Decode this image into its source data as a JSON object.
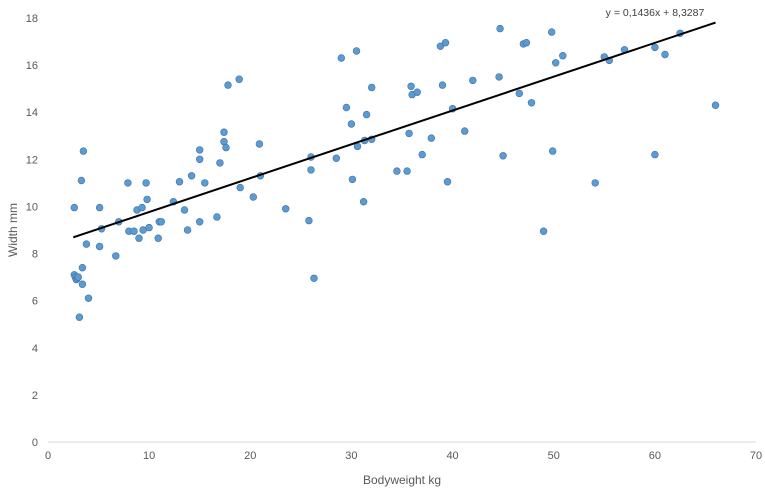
{
  "chart_data": {
    "type": "scatter",
    "title": "",
    "xlabel": "Bodyweight kg",
    "ylabel": "Width mm",
    "xlim": [
      0,
      70
    ],
    "ylim": [
      0,
      18
    ],
    "xticks": [
      0,
      10,
      20,
      30,
      40,
      50,
      60,
      70
    ],
    "yticks": [
      0,
      2,
      4,
      6,
      8,
      10,
      12,
      14,
      16,
      18
    ],
    "grid": false,
    "legend": "none",
    "marker_color": "#5B9BD5",
    "marker_edge_color": "#41719C",
    "trendline": {
      "type": "linear",
      "slope": 0.1436,
      "intercept": 8.3287,
      "x_range": [
        2.5,
        66
      ],
      "color": "#000000",
      "equation_label": "y = 0,1436x + 8,3287"
    },
    "points": [
      [
        2.6,
        9.95
      ],
      [
        2.6,
        7.1
      ],
      [
        2.7,
        7.0
      ],
      [
        2.8,
        6.9
      ],
      [
        2.9,
        6.95
      ],
      [
        3.0,
        7.0
      ],
      [
        3.1,
        5.3
      ],
      [
        3.3,
        11.1
      ],
      [
        3.4,
        7.4
      ],
      [
        3.4,
        6.7
      ],
      [
        3.5,
        12.35
      ],
      [
        3.8,
        8.4
      ],
      [
        4.0,
        6.1
      ],
      [
        5.1,
        8.3
      ],
      [
        5.1,
        9.95
      ],
      [
        5.3,
        9.05
      ],
      [
        6.7,
        7.9
      ],
      [
        7.0,
        9.35
      ],
      [
        7.9,
        11.0
      ],
      [
        8.0,
        8.95
      ],
      [
        8.5,
        8.95
      ],
      [
        8.8,
        9.85
      ],
      [
        9.0,
        8.65
      ],
      [
        9.3,
        9.95
      ],
      [
        9.4,
        9.0
      ],
      [
        9.7,
        11.0
      ],
      [
        9.8,
        10.3
      ],
      [
        10.0,
        9.1
      ],
      [
        10.9,
        8.65
      ],
      [
        11.0,
        9.35
      ],
      [
        11.2,
        9.35
      ],
      [
        12.4,
        10.2
      ],
      [
        13.0,
        11.05
      ],
      [
        13.5,
        9.85
      ],
      [
        13.8,
        9.0
      ],
      [
        14.2,
        11.3
      ],
      [
        15.0,
        12.4
      ],
      [
        15.0,
        12.0
      ],
      [
        15.0,
        9.35
      ],
      [
        15.5,
        11.0
      ],
      [
        16.7,
        9.55
      ],
      [
        17.0,
        11.85
      ],
      [
        17.4,
        13.15
      ],
      [
        17.4,
        12.75
      ],
      [
        17.6,
        12.5
      ],
      [
        17.8,
        15.15
      ],
      [
        18.9,
        15.4
      ],
      [
        19.0,
        10.8
      ],
      [
        20.3,
        10.4
      ],
      [
        20.9,
        12.65
      ],
      [
        21.0,
        11.3
      ],
      [
        23.5,
        9.9
      ],
      [
        25.8,
        9.4
      ],
      [
        26.0,
        11.55
      ],
      [
        26.0,
        12.1
      ],
      [
        26.3,
        6.95
      ],
      [
        28.5,
        12.05
      ],
      [
        29.0,
        16.3
      ],
      [
        29.5,
        14.2
      ],
      [
        30.0,
        13.5
      ],
      [
        30.1,
        11.15
      ],
      [
        30.5,
        16.6
      ],
      [
        30.6,
        12.55
      ],
      [
        31.2,
        10.2
      ],
      [
        31.5,
        13.9
      ],
      [
        31.3,
        12.8
      ],
      [
        32.0,
        15.05
      ],
      [
        32.0,
        12.85
      ],
      [
        34.5,
        11.5
      ],
      [
        35.5,
        11.5
      ],
      [
        35.7,
        13.1
      ],
      [
        35.9,
        15.1
      ],
      [
        36.0,
        14.75
      ],
      [
        36.5,
        14.85
      ],
      [
        37.0,
        12.2
      ],
      [
        37.9,
        12.9
      ],
      [
        38.8,
        16.8
      ],
      [
        39.0,
        15.15
      ],
      [
        39.3,
        16.95
      ],
      [
        39.5,
        11.05
      ],
      [
        40.0,
        14.15
      ],
      [
        41.2,
        13.2
      ],
      [
        42.0,
        15.35
      ],
      [
        44.6,
        15.5
      ],
      [
        44.7,
        17.55
      ],
      [
        45.0,
        12.15
      ],
      [
        46.6,
        14.8
      ],
      [
        47.0,
        16.9
      ],
      [
        47.3,
        16.95
      ],
      [
        47.8,
        14.4
      ],
      [
        49.0,
        8.95
      ],
      [
        49.8,
        17.4
      ],
      [
        49.9,
        12.35
      ],
      [
        50.2,
        16.1
      ],
      [
        50.9,
        16.4
      ],
      [
        54.1,
        11.0
      ],
      [
        55.0,
        16.35
      ],
      [
        55.5,
        16.2
      ],
      [
        57.0,
        16.65
      ],
      [
        60.0,
        16.75
      ],
      [
        60.0,
        12.2
      ],
      [
        61.0,
        16.45
      ],
      [
        62.5,
        17.35
      ],
      [
        66.0,
        14.3
      ]
    ]
  }
}
